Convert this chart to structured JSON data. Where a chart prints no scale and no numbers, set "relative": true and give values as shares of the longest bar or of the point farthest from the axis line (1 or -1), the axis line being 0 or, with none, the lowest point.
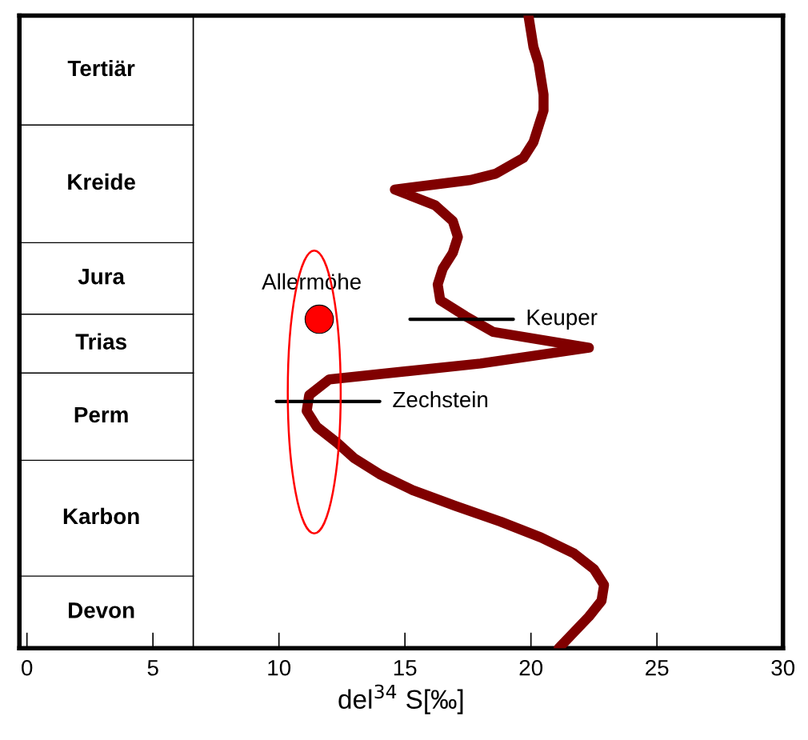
{
  "chart_data": {
    "type": "line",
    "relative": true,
    "xlabel": "del$^{34}$ S[‰]",
    "series": [
      {
        "color": "#800000",
        "x": [
          19.9,
          20.0,
          20.1,
          20.3,
          20.4,
          20.5,
          20.5,
          20.3,
          20.1,
          19.7,
          18.6,
          17.6,
          14.6,
          16.2,
          16.9,
          17.1,
          16.9,
          16.5,
          16.3,
          16.4,
          17.4,
          18.5,
          22.3,
          18.0,
          12.0,
          11.2,
          11.1,
          11.5,
          12.3,
          13.0,
          14.0,
          15.3,
          17.0,
          18.8,
          20.4,
          21.7,
          22.5,
          22.9,
          22.8,
          22.3,
          21.7,
          21.1
        ],
        "values": [
          1.0,
          0.975,
          0.95,
          0.925,
          0.9,
          0.875,
          0.85,
          0.825,
          0.8,
          0.775,
          0.75,
          0.74,
          0.725,
          0.7,
          0.675,
          0.65,
          0.625,
          0.6,
          0.575,
          0.55,
          0.525,
          0.5,
          0.475,
          0.45,
          0.425,
          0.4,
          0.375,
          0.35,
          0.325,
          0.3,
          0.275,
          0.25,
          0.225,
          0.2,
          0.175,
          0.15,
          0.125,
          0.1,
          0.075,
          0.05,
          0.025,
          0.0
        ]
      },
      {
        "type": "line",
        "name": "Keuper",
        "color": "#000000",
        "x": [
          15.2,
          19.3
        ],
        "values": [
          0.52,
          0.52
        ]
      },
      {
        "type": "line",
        "name": "Zechstein",
        "color": "#000000",
        "x": [
          9.9,
          14.0
        ],
        "values": [
          0.39,
          0.39
        ]
      },
      {
        "type": "scatter",
        "name": "Allermöhe",
        "color": "#ff0000",
        "marker": "circle",
        "x": [
          11.6
        ],
        "values": [
          0.52
        ]
      }
    ],
    "xlim": [
      -0.3,
      30
    ],
    "xticks": [
      0,
      5,
      10,
      15,
      20,
      25,
      30
    ],
    "tick_labels": "x",
    "grid": false,
    "legend": false,
    "ref_lines": [
      {
        "axis": "x",
        "value": 6.6,
        "color": "#000000"
      }
    ],
    "annotations": [
      "Tertiär",
      "Kreide",
      "Jura",
      "Trias",
      "Perm",
      "Karbon",
      "Devon"
    ]
  }
}
